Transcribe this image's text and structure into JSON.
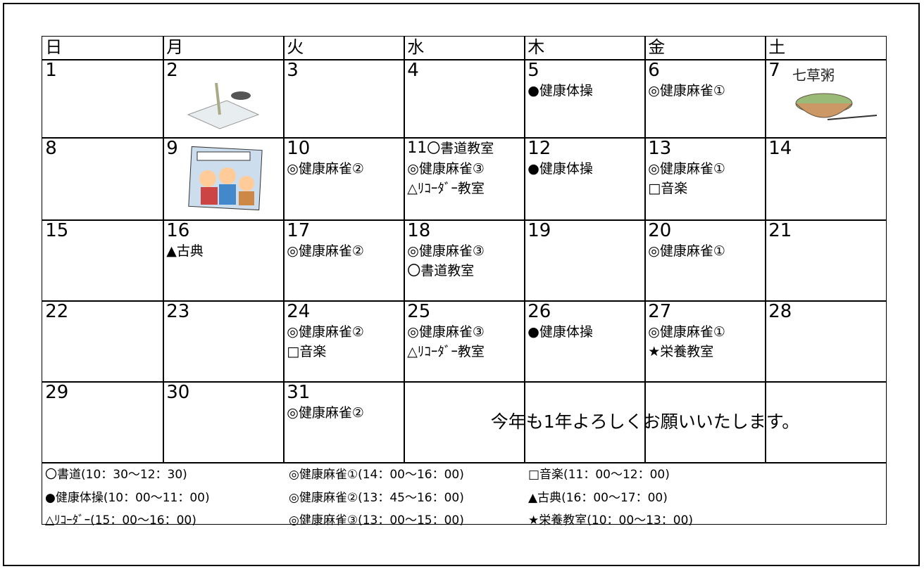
{
  "header": [
    "日",
    "月",
    "火",
    "水",
    "木",
    "金",
    "土"
  ],
  "weeks": [
    [
      {
        "day": "1",
        "events": []
      },
      {
        "day": "2",
        "events": []
      },
      {
        "day": "3",
        "events": []
      },
      {
        "day": "4",
        "events": []
      },
      {
        "day": "5",
        "events": [
          "●健康体操"
        ]
      },
      {
        "day": "6",
        "events": [
          "◎健康麻雀①"
        ]
      },
      {
        "day": "7",
        "events": []
      }
    ],
    [
      {
        "day": "8",
        "events": []
      },
      {
        "day": "9",
        "events": []
      },
      {
        "day": "10",
        "events": [
          "◎健康麻雀②"
        ]
      },
      {
        "day": "11",
        "events": [
          "〇書道教室",
          "◎健康麻雀③",
          "△ﾘｺｰﾀﾞｰ教室"
        ]
      },
      {
        "day": "12",
        "events": [
          "●健康体操"
        ]
      },
      {
        "day": "13",
        "events": [
          "◎健康麻雀①",
          "□音楽"
        ]
      },
      {
        "day": "14",
        "events": []
      }
    ],
    [
      {
        "day": "15",
        "events": []
      },
      {
        "day": "16",
        "events": [
          "▲古典"
        ]
      },
      {
        "day": "17",
        "events": [
          "◎健康麻雀②"
        ]
      },
      {
        "day": "18",
        "events": [
          "◎健康麻雀③",
          "〇書道教室"
        ]
      },
      {
        "day": "19",
        "events": []
      },
      {
        "day": "20",
        "events": [
          "◎健康麻雀①"
        ]
      },
      {
        "day": "21",
        "events": []
      }
    ],
    [
      {
        "day": "22",
        "events": []
      },
      {
        "day": "23",
        "events": []
      },
      {
        "day": "24",
        "events": [
          "◎健康麻雀②",
          "□音楽"
        ]
      },
      {
        "day": "25",
        "events": [
          "◎健康麻雀③",
          "△ﾘｺｰﾀﾞｰ教室"
        ]
      },
      {
        "day": "26",
        "events": [
          "●健康体操"
        ]
      },
      {
        "day": "27",
        "events": [
          "◎健康麻雀①",
          "★栄養教室"
        ]
      },
      {
        "day": "28",
        "events": []
      }
    ],
    [
      {
        "day": "29",
        "events": []
      },
      {
        "day": "30",
        "events": []
      },
      {
        "day": "31",
        "events": [
          "◎健康麻雀②"
        ]
      }
    ]
  ],
  "message": "今年も1年よろしくお願いいたします。",
  "legend": [
    [
      "〇書道(10：30～12：30)",
      "◎健康麻雀①(14：00～16：00)",
      "□音楽(11：00～12：00)"
    ],
    [
      "●健康体操(10：00～11：00)",
      "◎健康麻雀②(13：45～16：00)",
      "▲古典(16：00～17：00)"
    ],
    [
      "△ﾘｺｰﾀﾞｰ(15：00～16：00)",
      "◎健康麻雀③(13：00～15：00)",
      "★栄養教室(10：00～13：00)"
    ]
  ]
}
